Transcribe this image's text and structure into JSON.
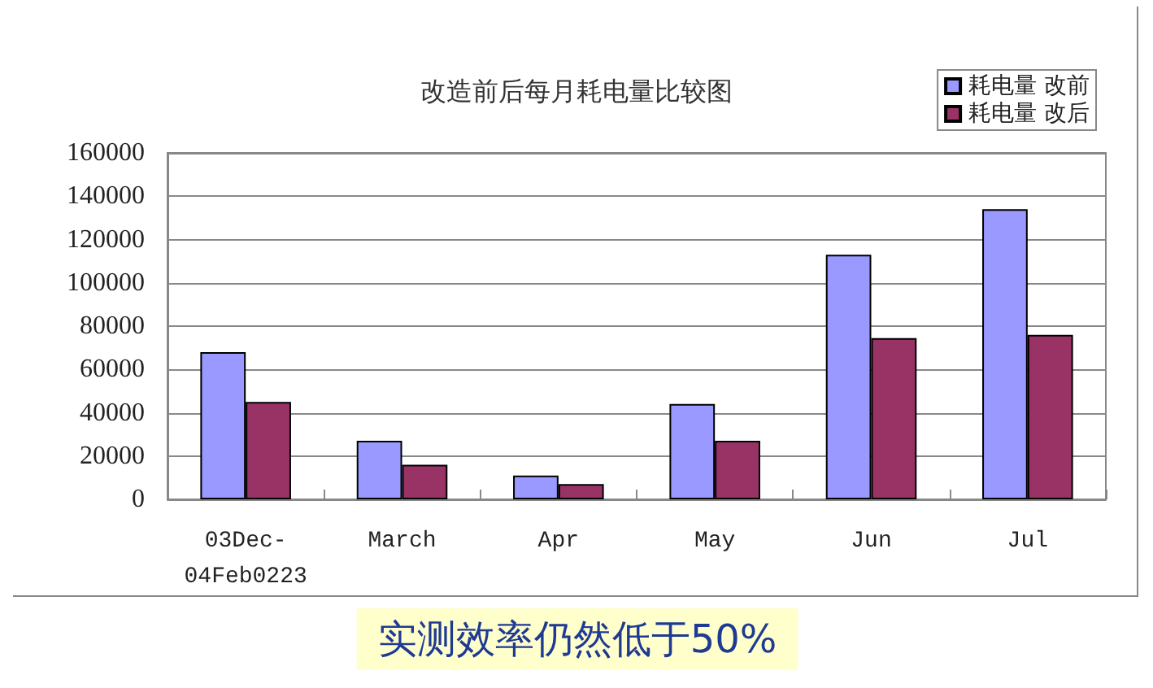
{
  "chart_data": {
    "type": "bar",
    "title": "改造前后每月耗电量比较图",
    "categories": [
      "03Dec-04Feb0223",
      "March",
      "Apr",
      "May",
      "Jun",
      "Jul"
    ],
    "series": [
      {
        "name": "耗电量 改前",
        "color": "#9999ff",
        "values": [
          68000,
          27000,
          11000,
          44000,
          113000,
          134000
        ]
      },
      {
        "name": "耗电量 改后",
        "color": "#993366",
        "values": [
          45000,
          16000,
          7000,
          27000,
          74500,
          76000
        ]
      }
    ],
    "ylim": [
      0,
      160000
    ],
    "yticks": [
      0,
      20000,
      40000,
      60000,
      80000,
      100000,
      120000,
      140000,
      160000
    ],
    "grid": "y",
    "legend": "top right",
    "annotations": [
      "实测效率仍然低于50%"
    ]
  }
}
